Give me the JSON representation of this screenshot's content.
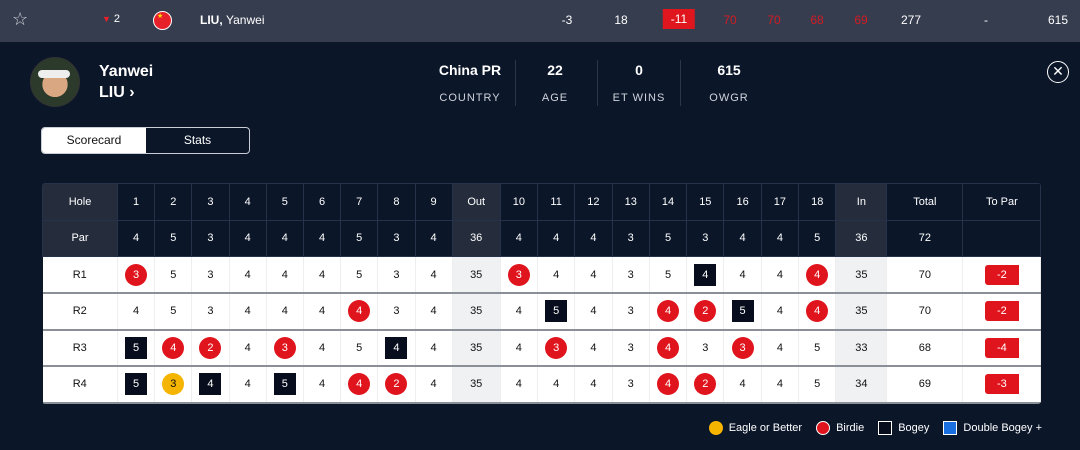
{
  "row": {
    "movement": "2",
    "name_last": "LIU,",
    "name_first": "Yanwei",
    "today": "-3",
    "thru": "18",
    "to_par": "-11",
    "r1": "70",
    "r2": "70",
    "r3": "68",
    "r4": "69",
    "total": "277",
    "earnings": "-",
    "points": "615"
  },
  "player": {
    "first": "Yanwei",
    "last": "LIU",
    "chevron": "›"
  },
  "stats": [
    {
      "value": "China PR",
      "label": "COUNTRY"
    },
    {
      "value": "22",
      "label": "AGE"
    },
    {
      "value": "0",
      "label": "ET WINS"
    },
    {
      "value": "615",
      "label": "OWGR"
    }
  ],
  "tabs": [
    "Scorecard",
    "Stats"
  ],
  "colors": {
    "birdie": "#e0141c",
    "eagle": "#f5b400",
    "bogey": "#070d1c",
    "double_bogey": "#1a6fe0"
  },
  "scorecard": {
    "hole_label": "Hole",
    "par_label": "Par",
    "out_label": "Out",
    "in_label": "In",
    "total_label": "Total",
    "to_par_label": "To Par",
    "par": [
      4,
      5,
      3,
      4,
      4,
      4,
      5,
      3,
      4,
      4,
      4,
      4,
      3,
      5,
      3,
      4,
      4,
      5
    ],
    "par_out": "36",
    "par_in": "36",
    "par_total": "72",
    "rounds": [
      {
        "label": "R1",
        "scores": [
          3,
          5,
          3,
          4,
          4,
          4,
          5,
          3,
          4,
          3,
          4,
          4,
          3,
          5,
          4,
          4,
          4,
          4
        ],
        "types": [
          "b",
          "",
          "",
          "",
          "",
          "",
          "",
          "",
          "",
          "b",
          "",
          "",
          "",
          "",
          "o",
          "",
          "",
          "b"
        ],
        "out": "35",
        "in": "35",
        "total": "70",
        "to_par": "-2"
      },
      {
        "label": "R2",
        "scores": [
          4,
          5,
          3,
          4,
          4,
          4,
          4,
          3,
          4,
          4,
          5,
          4,
          3,
          4,
          2,
          5,
          4,
          4
        ],
        "types": [
          "",
          "",
          "",
          "",
          "",
          "",
          "b",
          "",
          "",
          "",
          "o",
          "",
          "",
          "b",
          "b",
          "o",
          "",
          "b"
        ],
        "out": "35",
        "in": "35",
        "total": "70",
        "to_par": "-2"
      },
      {
        "label": "R3",
        "scores": [
          5,
          4,
          2,
          4,
          3,
          4,
          5,
          4,
          4,
          4,
          3,
          4,
          3,
          4,
          3,
          3,
          4,
          5
        ],
        "types": [
          "o",
          "b",
          "b",
          "",
          "b",
          "",
          "",
          "o",
          "",
          "",
          "b",
          "",
          "",
          "b",
          "",
          "b",
          "",
          ""
        ],
        "out": "35",
        "in": "33",
        "total": "68",
        "to_par": "-4"
      },
      {
        "label": "R4",
        "scores": [
          5,
          3,
          4,
          4,
          5,
          4,
          4,
          2,
          4,
          4,
          4,
          4,
          3,
          4,
          2,
          4,
          4,
          5
        ],
        "types": [
          "o",
          "e",
          "o",
          "",
          "o",
          "",
          "b",
          "b",
          "",
          "",
          "",
          "",
          "",
          "b",
          "b",
          "",
          "",
          ""
        ],
        "out": "35",
        "in": "34",
        "total": "69",
        "to_par": "-3"
      }
    ]
  },
  "legend": [
    "Eagle or Better",
    "Birdie",
    "Bogey",
    "Double Bogey +"
  ]
}
